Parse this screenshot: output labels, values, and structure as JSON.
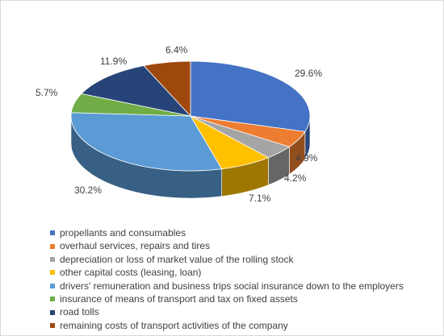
{
  "chart_data": {
    "type": "pie",
    "title": "",
    "style": "3d",
    "legend_position": "bottom",
    "slices": [
      {
        "label": "propellants and consumables",
        "value": 29.6,
        "value_label": "29.6%",
        "color": "#4472c4"
      },
      {
        "label": "overhaul services, repairs and tires",
        "value": 4.9,
        "value_label": "4.9%",
        "color": "#ed7d31"
      },
      {
        "label": "depreciation or loss of market  value of the rolling stock",
        "value": 4.2,
        "value_label": "4.2%",
        "color": "#a5a5a5"
      },
      {
        "label": "other capital costs (leasing, loan)",
        "value": 7.1,
        "value_label": "7.1%",
        "color": "#ffc000"
      },
      {
        "label": "drivers' remuneration and business trips social insurance down to the employers",
        "value": 30.2,
        "value_label": "30.2%",
        "color": "#5b9bd5"
      },
      {
        "label": "insurance of means of transport and tax on fixed assets",
        "value": 5.7,
        "value_label": "5.7%",
        "color": "#70ad47"
      },
      {
        "label": "road tolls",
        "value": 11.9,
        "value_label": "11.9%",
        "color": "#264478"
      },
      {
        "label": "remaining costs of transport activities of the company",
        "value": 6.4,
        "value_label": "6.4%",
        "color": "#9e480e"
      }
    ]
  }
}
